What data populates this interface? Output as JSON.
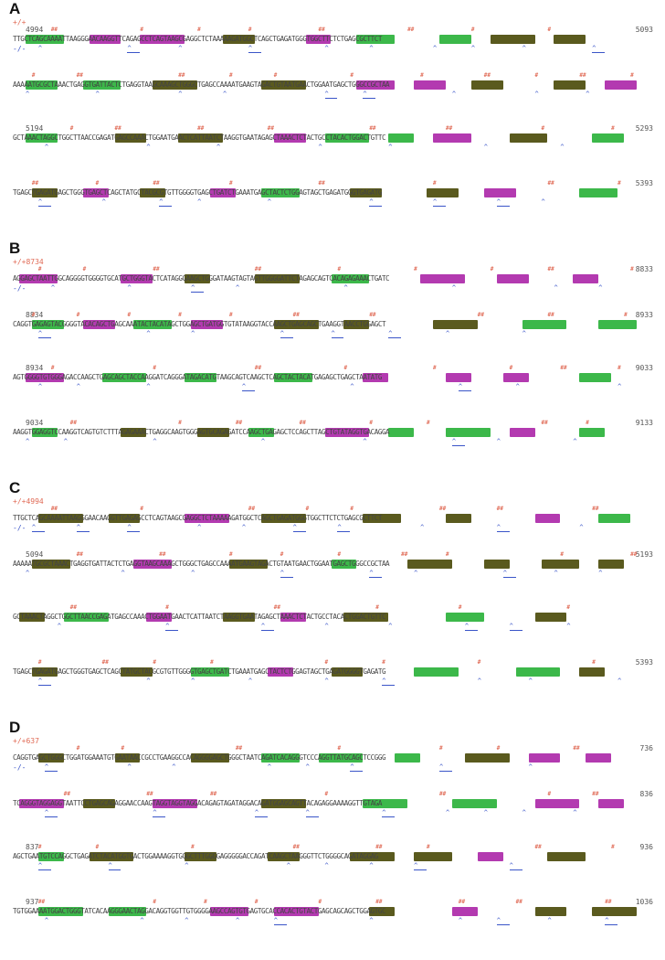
{
  "panels": [
    {
      "letter": "A",
      "genotype": "+/+",
      "genotype_alt": "-/-",
      "rows": [
        {
          "start": "4994",
          "end": "5093",
          "seq": "TTGCTCAGCAAAATTAAGGGAACAAGGTTCAGAGCCTCAGTAAGCGAGGCTCTAAAAAGATGGCTCAGCTGAGATGGGTGGCTTCTCTGAGCGCTTCT"
        },
        {
          "start": "",
          "end": "",
          "seq": "AAAAATGCGCTAAACTGAGGTGATTACTCTGAGGTAAGCAAAGCTGGGCTGAGCCAAAATGAAGTAGACTGTAATGAACTGGAATGAGCTGGGCCGCTAA"
        },
        {
          "start": "5194",
          "end": "5293",
          "seq": "GCTAAACTAGGCTGGCTTAACCGAGATGAGCCAAACTGGAATGAACTCATTAATCTAAGGTGAATAGAGCTAAACTCTACTGCCTACACTGGACTGTTC"
        },
        {
          "start": "",
          "end": "5393",
          "seq": "TGAGCTGAGATGAGCTGGGTGAGCTCAGCTATGCTACGCGTGTTGGGGTGAGCTGATCTGAAATGAGCTACTCTGGAGTAGCTGAGATGGGTGAGATG"
        }
      ]
    },
    {
      "letter": "B",
      "genotype": "+/+8734",
      "genotype_alt": "-/-",
      "rows": [
        {
          "start": "",
          "end": "8833",
          "seq": "AGGAGCTAATTGGCAGGGGTGGGGTGCATGCTGGGTACTCATAGGGAAGCTGGGATAAGTAGTAGTTGGGGATTCTAGAGCAGTCACAGAGAAACTGATC"
        },
        {
          "start": "8834",
          "end": "8933",
          "seq": "CAGGTGAGAGTACGGGGTACACAGCTGAGCAAATACTACATAGCTGGAGCTGATGGTGTATAAGGTACCAAGCTGAGCAGCTGAAGGTAACCTGGAGCT"
        },
        {
          "start": "8934",
          "end": "9033",
          "seq": "AGTGGGGTGTGGGAGACCAAGCTGAGCAGCTACCAAGGATCAGGGATAGACATGTAAGCAGTCAAGCTCAGCTACTACATGAGAGCTGAGCTAATATG"
        },
        {
          "start": "9034",
          "end": "9133",
          "seq": "AAGGTGGAGGTCCAAGGTCAGTGTCTTTAGAGAAACTGAGGCAAGTGGGAGTGCAGAGATCCAAGCTGAGAGCTCCAGCTTAGCTGTATAGGTGACAGGA"
        }
      ]
    },
    {
      "letter": "C",
      "genotype": "+/+4994",
      "genotype_alt": "-/-",
      "rows": [
        {
          "start": "",
          "end": "",
          "seq": "TTGCTCAGCAAAATTAAGGGAACAAGGTTGAGAGCCTCAGTAAGCGAGGCTCTAAAAAGATGGCTCAGCTGAGATGGGTGGCTTCTCTGAGCGCTTCT"
        },
        {
          "start": "5094",
          "end": "5193",
          "seq": "AAAAATGCGCTAAACTGAGGTGATTACTCTGAGGTAAGCAAAGCTGGGCTGAGCCAAAATGAAGTAGACTGTAATGAACTGGAATGAGCTGGGCCGCTAA"
        },
        {
          "start": "",
          "end": "",
          "seq": "GCTAAACTAGGCTGGCTTAACCGAGATGAGCCAAACTGGAATGAACTCATTAATCTAAGGTGAATAGAGCTAAACTCTACTGCCTACACTGGACTGTTC"
        },
        {
          "start": "",
          "end": "5393",
          "seq": "TGAGCTGAGATGAGCTGGGTGAGCTCAGCTATGCTACGCGTGTTGGGGTGAGCTGATCTGAAATGAGCTACTCTGGAGTAGCTGAGATGGGGTGAGATG"
        }
      ]
    },
    {
      "letter": "D",
      "genotype": "+/+637",
      "genotype_alt": "-/-",
      "rows": [
        {
          "start": "",
          "end": "736",
          "seq": "CAGGTGAGCTGGGCTGGATGGAAATGTGAATAACCGCCTGAAGGCCACAGGGGAGCTGGGCTAATCAGATCACAGGGTCCCAGGTTATGCAGCTCCGGG"
        },
        {
          "start": "",
          "end": "836",
          "seq": "TCAGGGTAGGAGGTAATTCCTGAGCAGAGGAACCAAGTAGGTAGGTAGGACAGAGTAGATAGGACAGATGGAGCAGTTACAGAGGAAAAGGTTGTAGA"
        },
        {
          "start": "837",
          "end": "936",
          "seq": "AGCTGAATGTCCAGGCTGAGATCTACATGGTGACTGGAAAAGGTGGGCTTTGGGGAGGGGGACCAGATCAAGCTAAGGGTTCTGGGGCAGATAGGAG"
        },
        {
          "start": "937",
          "end": "1036",
          "seq": "TGTGGAAAATGGACTGGGTATCACAAGGGAACTAGGACAGGTGGTTGTGGGGAAGCCAGTGTGAGTGCACCACACTGTACTGAGCAGCAGCTGGAGTGC"
        }
      ]
    }
  ],
  "colors": {
    "green": "#3cb84a",
    "magenta": "#b33ab0",
    "olive": "#5a5a1e",
    "mark": "#e06a55",
    "caret": "#3a55c8"
  }
}
